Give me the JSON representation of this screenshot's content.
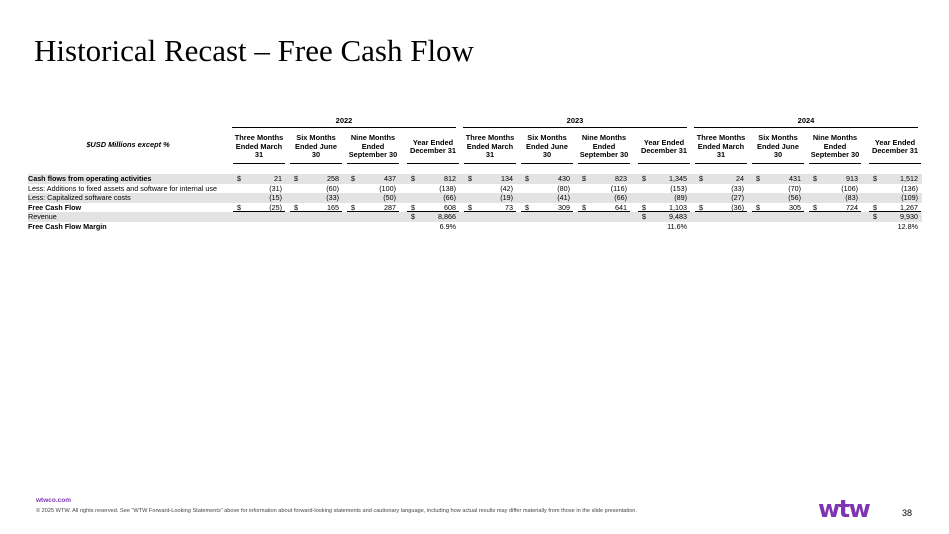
{
  "title": "Historical Recast – Free Cash Flow",
  "table": {
    "unit_label": "$USD Millions except %",
    "years": [
      "2022",
      "2023",
      "2024"
    ],
    "period_headers": [
      [
        "Three Months",
        "Ended March",
        "31"
      ],
      [
        "Six Months",
        "Ended June",
        "30"
      ],
      [
        "Nine Months",
        "Ended",
        "September 30"
      ],
      [
        "Year Ended",
        "December 31"
      ]
    ],
    "rows": [
      {
        "label": "Cash flows from operating activities",
        "bold": true,
        "shade": true,
        "values": [
          "21",
          "258",
          "437",
          "812",
          "134",
          "430",
          "823",
          "1,345",
          "24",
          "431",
          "913",
          "1,512"
        ],
        "dollar": [
          true,
          true,
          true,
          true,
          true,
          true,
          true,
          true,
          true,
          true,
          true,
          true
        ],
        "underline": false
      },
      {
        "label": "Less: Additions to fixed assets and software for internal use",
        "bold": false,
        "shade": false,
        "values": [
          "(31)",
          "(60)",
          "(100)",
          "(138)",
          "(42)",
          "(80)",
          "(116)",
          "(153)",
          "(33)",
          "(70)",
          "(106)",
          "(136)"
        ],
        "dollar": [
          false,
          false,
          false,
          false,
          false,
          false,
          false,
          false,
          false,
          false,
          false,
          false
        ],
        "underline": false
      },
      {
        "label": "Less: Capitalized software costs",
        "bold": false,
        "shade": true,
        "values": [
          "(15)",
          "(33)",
          "(50)",
          "(66)",
          "(19)",
          "(41)",
          "(66)",
          "(89)",
          "(27)",
          "(56)",
          "(83)",
          "(109)"
        ],
        "dollar": [
          false,
          false,
          false,
          false,
          false,
          false,
          false,
          false,
          false,
          false,
          false,
          false
        ],
        "underline": false
      },
      {
        "label": "Free Cash Flow",
        "bold": true,
        "shade": false,
        "values": [
          "(25)",
          "165",
          "287",
          "608",
          "73",
          "309",
          "641",
          "1,103",
          "(36)",
          "305",
          "724",
          "1,267"
        ],
        "dollar": [
          true,
          true,
          true,
          true,
          true,
          true,
          true,
          true,
          true,
          true,
          true,
          true
        ],
        "underline": true
      },
      {
        "label": "Revenue",
        "bold": false,
        "shade": true,
        "values": [
          "",
          "",
          "",
          "8,866",
          "",
          "",
          "",
          "9,483",
          "",
          "",
          "",
          "9,930"
        ],
        "dollar": [
          false,
          false,
          false,
          true,
          false,
          false,
          false,
          true,
          false,
          false,
          false,
          true
        ],
        "underline": false
      },
      {
        "label": "Free Cash Flow Margin",
        "bold": true,
        "shade": false,
        "values": [
          "",
          "",
          "",
          "6.9%",
          "",
          "",
          "",
          "11.6%",
          "",
          "",
          "",
          "12.8%"
        ],
        "dollar": [
          false,
          false,
          false,
          false,
          false,
          false,
          false,
          false,
          false,
          false,
          false,
          false
        ],
        "underline": false
      }
    ],
    "currency_symbol": "$"
  },
  "footer": {
    "url": "wtwco.com",
    "copyright": "© 2025 WTW. All rights reserved. See “WTW Forward-Looking Statements” above for information about forward-looking statements and cautionary language, including how actual results may differ materially from those in the slide presentation.",
    "logo_text": "wtw",
    "page_number": "38"
  },
  "colors": {
    "accent": "#7f35b2",
    "row_shade": "#e3e3e3"
  }
}
